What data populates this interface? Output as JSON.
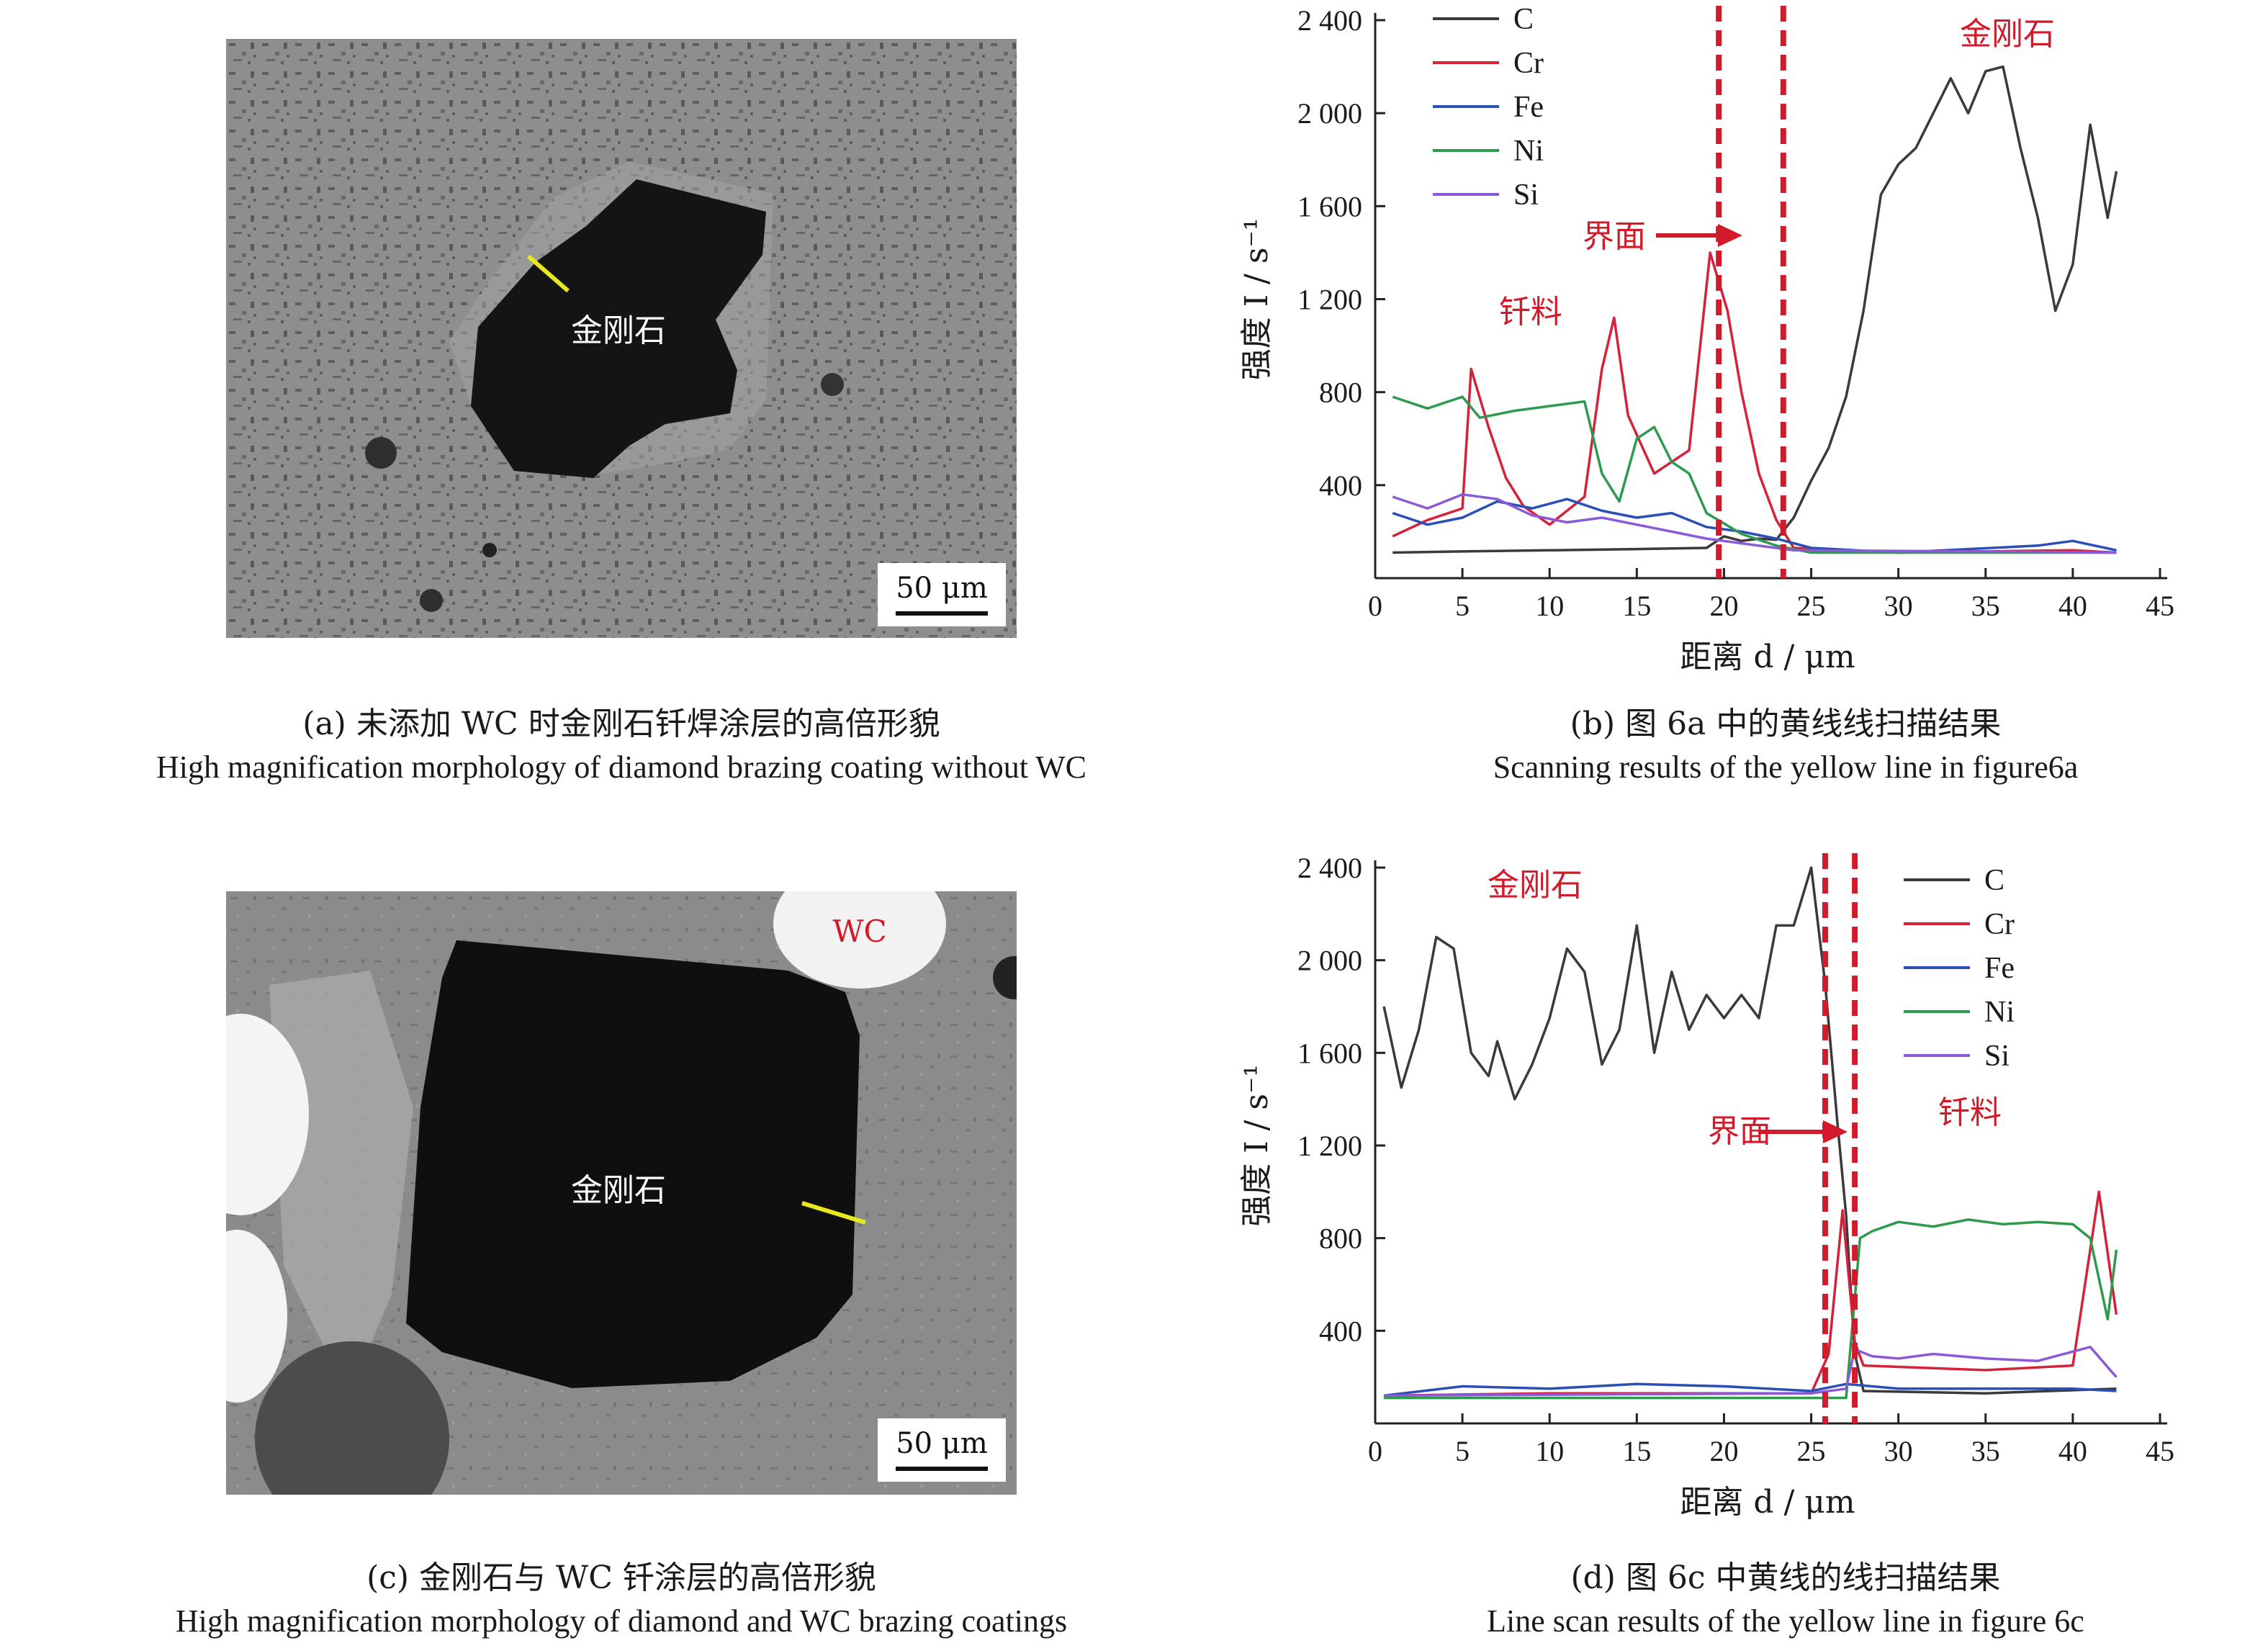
{
  "panel_a": {
    "label_diamond": "金刚石",
    "scale_bar": "50 μm",
    "caption_cn": "(a) 未添加 WC 时金刚石钎焊涂层的高倍形貌",
    "caption_en": "High magnification morphology of diamond brazing coating without WC"
  },
  "panel_c": {
    "label_diamond": "金刚石",
    "label_wc": "WC",
    "scale_bar": "50 μm",
    "caption_cn": "(c) 金刚石与 WC 钎涂层的高倍形貌",
    "caption_en": "High magnification morphology of diamond and WC brazing coatings"
  },
  "panel_b": {
    "caption_cn": "(b) 图 6a 中的黄线线扫描结果",
    "caption_en": "Scanning results of the yellow line in figure6a"
  },
  "panel_d": {
    "caption_cn": "(d) 图 6c 中黄线的线扫描结果",
    "caption_en": "Line scan results of the yellow line in figure 6c"
  },
  "colors": {
    "C": "#3a3a3a",
    "Cr": "#d6213a",
    "Fe": "#2b4fb5",
    "Ni": "#2e9a4e",
    "Si": "#8c5ad6",
    "annotation": "#d11a2a",
    "yellow_line": "#e8e820"
  },
  "chart_data": [
    {
      "id": "b",
      "type": "line",
      "xlabel": "距离 d / μm",
      "ylabel": "强度 I / s⁻¹",
      "xlim": [
        0,
        45
      ],
      "ylim": [
        0,
        2400
      ],
      "xticks": [
        "0",
        "5",
        "10",
        "15",
        "20",
        "25",
        "30",
        "35",
        "40",
        "45"
      ],
      "yticks": [
        "400",
        "800",
        "1 200",
        "1 600",
        "2 000",
        "2 400"
      ],
      "legend": [
        "C",
        "Cr",
        "Fe",
        "Ni",
        "Si"
      ],
      "legend_position": "top-left",
      "interface_lines": [
        19.7,
        23.4
      ],
      "annotations": {
        "interface": "界面",
        "filler": "钎料",
        "diamond": "金刚石"
      },
      "series": [
        {
          "name": "C",
          "points": [
            [
              1,
              110
            ],
            [
              5,
              115
            ],
            [
              10,
              120
            ],
            [
              15,
              125
            ],
            [
              19,
              130
            ],
            [
              20,
              180
            ],
            [
              21,
              160
            ],
            [
              22,
              170
            ],
            [
              23,
              165
            ],
            [
              24,
              260
            ],
            [
              25,
              420
            ],
            [
              26,
              560
            ],
            [
              27,
              780
            ],
            [
              28,
              1150
            ],
            [
              29,
              1650
            ],
            [
              30,
              1780
            ],
            [
              31,
              1850
            ],
            [
              32,
              2000
            ],
            [
              33,
              2150
            ],
            [
              34,
              2000
            ],
            [
              35,
              2180
            ],
            [
              36,
              2200
            ],
            [
              37,
              1850
            ],
            [
              38,
              1550
            ],
            [
              39,
              1150
            ],
            [
              40,
              1350
            ],
            [
              41,
              1950
            ],
            [
              42,
              1550
            ],
            [
              42.5,
              1750
            ]
          ]
        },
        {
          "name": "Cr",
          "points": [
            [
              1,
              180
            ],
            [
              3,
              250
            ],
            [
              5,
              300
            ],
            [
              5.5,
              900
            ],
            [
              6.5,
              650
            ],
            [
              7.5,
              430
            ],
            [
              8.5,
              310
            ],
            [
              10,
              230
            ],
            [
              12,
              350
            ],
            [
              13,
              900
            ],
            [
              13.7,
              1120
            ],
            [
              14.5,
              700
            ],
            [
              16,
              450
            ],
            [
              18,
              550
            ],
            [
              19.2,
              1400
            ],
            [
              20.2,
              1150
            ],
            [
              21,
              800
            ],
            [
              22,
              450
            ],
            [
              23,
              250
            ],
            [
              24,
              130
            ],
            [
              30,
              110
            ],
            [
              40,
              120
            ],
            [
              42.5,
              110
            ]
          ]
        },
        {
          "name": "Fe",
          "points": [
            [
              1,
              280
            ],
            [
              3,
              230
            ],
            [
              5,
              260
            ],
            [
              7,
              330
            ],
            [
              9,
              300
            ],
            [
              11,
              340
            ],
            [
              13,
              290
            ],
            [
              15,
              260
            ],
            [
              17,
              280
            ],
            [
              19,
              220
            ],
            [
              21,
              200
            ],
            [
              23,
              170
            ],
            [
              25,
              130
            ],
            [
              30,
              110
            ],
            [
              38,
              140
            ],
            [
              40,
              160
            ],
            [
              42.5,
              120
            ]
          ]
        },
        {
          "name": "Ni",
          "points": [
            [
              1,
              780
            ],
            [
              3,
              730
            ],
            [
              5,
              780
            ],
            [
              6,
              690
            ],
            [
              8,
              720
            ],
            [
              10,
              740
            ],
            [
              12,
              760
            ],
            [
              13,
              450
            ],
            [
              14,
              330
            ],
            [
              15,
              600
            ],
            [
              16,
              650
            ],
            [
              17,
              500
            ],
            [
              18,
              450
            ],
            [
              19,
              280
            ],
            [
              21,
              190
            ],
            [
              23,
              140
            ],
            [
              25,
              110
            ],
            [
              35,
              110
            ],
            [
              42.5,
              110
            ]
          ]
        },
        {
          "name": "Si",
          "points": [
            [
              1,
              350
            ],
            [
              3,
              300
            ],
            [
              5,
              360
            ],
            [
              7,
              340
            ],
            [
              9,
              270
            ],
            [
              11,
              240
            ],
            [
              13,
              260
            ],
            [
              15,
              230
            ],
            [
              17,
              200
            ],
            [
              19,
              170
            ],
            [
              21,
              150
            ],
            [
              24,
              120
            ],
            [
              35,
              115
            ],
            [
              42.5,
              110
            ]
          ]
        }
      ]
    },
    {
      "id": "d",
      "type": "line",
      "xlabel": "距离 d / μm",
      "ylabel": "强度 I / s⁻¹",
      "xlim": [
        0,
        45
      ],
      "ylim": [
        0,
        2400
      ],
      "xticks": [
        "0",
        "5",
        "10",
        "15",
        "20",
        "25",
        "30",
        "35",
        "40",
        "45"
      ],
      "yticks": [
        "400",
        "800",
        "1 200",
        "1 600",
        "2 000",
        "2 400"
      ],
      "legend": [
        "C",
        "Cr",
        "Fe",
        "Ni",
        "Si"
      ],
      "legend_position": "top-right",
      "interface_lines": [
        25.8,
        27.5
      ],
      "annotations": {
        "interface": "界面",
        "filler": "钎料",
        "diamond": "金刚石"
      },
      "series": [
        {
          "name": "C",
          "points": [
            [
              0.5,
              1800
            ],
            [
              1.5,
              1450
            ],
            [
              2.5,
              1700
            ],
            [
              3.5,
              2100
            ],
            [
              4.5,
              2050
            ],
            [
              5.5,
              1600
            ],
            [
              6.5,
              1500
            ],
            [
              7,
              1650
            ],
            [
              8,
              1400
            ],
            [
              9,
              1550
            ],
            [
              10,
              1750
            ],
            [
              11,
              2050
            ],
            [
              12,
              1950
            ],
            [
              13,
              1550
            ],
            [
              14,
              1700
            ],
            [
              15,
              2150
            ],
            [
              16,
              1600
            ],
            [
              17,
              1950
            ],
            [
              18,
              1700
            ],
            [
              19,
              1850
            ],
            [
              20,
              1750
            ],
            [
              21,
              1850
            ],
            [
              22,
              1750
            ],
            [
              23,
              2150
            ],
            [
              24,
              2150
            ],
            [
              25,
              2400
            ],
            [
              25.8,
              1900
            ],
            [
              26.5,
              1300
            ],
            [
              27,
              900
            ],
            [
              27.5,
              300
            ],
            [
              28,
              140
            ],
            [
              35,
              130
            ],
            [
              42.5,
              150
            ]
          ]
        },
        {
          "name": "Cr",
          "points": [
            [
              0.5,
              120
            ],
            [
              10,
              130
            ],
            [
              20,
              130
            ],
            [
              25,
              130
            ],
            [
              26,
              300
            ],
            [
              26.8,
              920
            ],
            [
              27.5,
              350
            ],
            [
              28,
              250
            ],
            [
              35,
              230
            ],
            [
              40,
              250
            ],
            [
              41.5,
              1000
            ],
            [
              42.5,
              470
            ]
          ]
        },
        {
          "name": "Fe",
          "points": [
            [
              0.5,
              120
            ],
            [
              5,
              160
            ],
            [
              10,
              150
            ],
            [
              15,
              170
            ],
            [
              20,
              160
            ],
            [
              25,
              140
            ],
            [
              27,
              170
            ],
            [
              30,
              150
            ],
            [
              40,
              150
            ],
            [
              42.5,
              140
            ]
          ]
        },
        {
          "name": "Ni",
          "points": [
            [
              0.5,
              110
            ],
            [
              20,
              110
            ],
            [
              27,
              110
            ],
            [
              27.8,
              800
            ],
            [
              28.5,
              830
            ],
            [
              30,
              870
            ],
            [
              32,
              850
            ],
            [
              34,
              880
            ],
            [
              36,
              860
            ],
            [
              38,
              870
            ],
            [
              40,
              860
            ],
            [
              41,
              800
            ],
            [
              42,
              450
            ],
            [
              42.5,
              750
            ]
          ]
        },
        {
          "name": "Si",
          "points": [
            [
              0.5,
              120
            ],
            [
              25,
              130
            ],
            [
              27,
              150
            ],
            [
              27.5,
              320
            ],
            [
              28.5,
              290
            ],
            [
              30,
              280
            ],
            [
              32,
              300
            ],
            [
              35,
              280
            ],
            [
              38,
              270
            ],
            [
              41,
              330
            ],
            [
              42.5,
              200
            ]
          ]
        }
      ]
    }
  ]
}
